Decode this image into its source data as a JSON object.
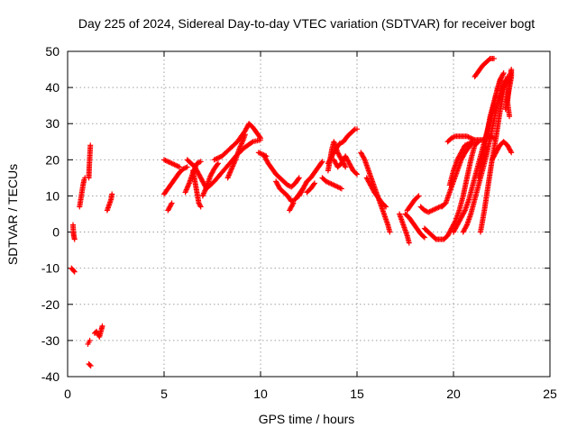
{
  "chart_data": {
    "type": "scatter",
    "title": "Day 225 of 2024, Sidereal Day-to-day VTEC variation (SDTVAR) for receiver bogt",
    "xlabel": "GPS time / hours",
    "ylabel": "SDTVAR / TECUs",
    "xlim": [
      0,
      25
    ],
    "ylim": [
      -40,
      50
    ],
    "xticks": [
      0,
      5,
      10,
      15,
      20,
      25
    ],
    "yticks": [
      -40,
      -30,
      -20,
      -10,
      0,
      10,
      20,
      30,
      40,
      50
    ],
    "grid": true,
    "marker": "plus",
    "point_color": "#ff0000",
    "segments": [
      [
        [
          0.2,
          -10.0
        ],
        [
          0.28,
          -10.5
        ],
        [
          0.36,
          -11.0
        ]
      ],
      [
        [
          0.28,
          2.0
        ],
        [
          0.3,
          0.0
        ],
        [
          0.32,
          -1.0
        ],
        [
          0.36,
          -2.0
        ]
      ],
      [
        [
          0.62,
          7.0
        ],
        [
          0.68,
          9.0
        ],
        [
          0.74,
          11.0
        ],
        [
          0.8,
          13.0
        ],
        [
          0.86,
          14.5
        ],
        [
          0.9,
          15.0
        ]
      ],
      [
        [
          1.1,
          15.0
        ],
        [
          1.12,
          18.0
        ],
        [
          1.14,
          20.0
        ],
        [
          1.16,
          22.0
        ],
        [
          1.18,
          24.0
        ]
      ],
      [
        [
          1.05,
          -31.0
        ],
        [
          1.1,
          -30.5
        ],
        [
          1.15,
          -30.0
        ]
      ],
      [
        [
          1.1,
          -36.5
        ],
        [
          1.2,
          -37.0
        ]
      ],
      [
        [
          1.4,
          -28.0
        ],
        [
          1.5,
          -27.5
        ],
        [
          1.65,
          -29.0
        ],
        [
          1.75,
          -27.0
        ],
        [
          1.8,
          -26.0
        ]
      ],
      [
        [
          2.05,
          6.0
        ],
        [
          2.15,
          7.5
        ],
        [
          2.25,
          9.0
        ],
        [
          2.3,
          10.5
        ]
      ],
      [
        [
          5.0,
          20.0
        ],
        [
          5.2,
          19.5
        ],
        [
          5.4,
          19.0
        ],
        [
          5.6,
          18.5
        ],
        [
          5.8,
          18.0
        ]
      ],
      [
        [
          5.0,
          10.5
        ],
        [
          5.2,
          12.0
        ],
        [
          5.4,
          13.5
        ],
        [
          5.6,
          15.0
        ],
        [
          5.8,
          16.5
        ],
        [
          6.0,
          17.5
        ],
        [
          6.2,
          18.0
        ]
      ],
      [
        [
          5.2,
          6.0
        ],
        [
          5.3,
          7.0
        ],
        [
          5.4,
          8.0
        ]
      ],
      [
        [
          6.1,
          11.0
        ],
        [
          6.3,
          13.5
        ],
        [
          6.5,
          16.5
        ],
        [
          6.7,
          19.0
        ],
        [
          6.9,
          19.5
        ]
      ],
      [
        [
          6.2,
          20.0
        ],
        [
          6.4,
          19.0
        ],
        [
          6.6,
          18.0
        ],
        [
          6.8,
          16.0
        ],
        [
          7.0,
          14.0
        ],
        [
          7.2,
          12.0
        ]
      ],
      [
        [
          6.5,
          17.0
        ],
        [
          6.6,
          14.0
        ],
        [
          6.7,
          11.0
        ],
        [
          6.8,
          8.0
        ],
        [
          6.9,
          7.0
        ]
      ],
      [
        [
          7.0,
          10.0
        ],
        [
          7.2,
          12.5
        ],
        [
          7.4,
          15.5
        ],
        [
          7.6,
          17.5
        ],
        [
          7.8,
          19.0
        ]
      ],
      [
        [
          7.2,
          12.0
        ],
        [
          7.6,
          14.0
        ],
        [
          8.0,
          16.5
        ],
        [
          8.4,
          19.0
        ],
        [
          8.8,
          21.5
        ],
        [
          9.2,
          23.5
        ],
        [
          9.6,
          25.0
        ],
        [
          10.0,
          25.5
        ]
      ],
      [
        [
          7.6,
          20.0
        ],
        [
          8.0,
          21.0
        ],
        [
          8.4,
          23.0
        ],
        [
          8.8,
          25.0
        ],
        [
          9.2,
          28.0
        ],
        [
          9.4,
          30.0
        ],
        [
          9.6,
          29.0
        ],
        [
          9.8,
          27.5
        ],
        [
          10.0,
          26.0
        ]
      ],
      [
        [
          8.3,
          15.0
        ],
        [
          8.5,
          17.5
        ],
        [
          8.7,
          20.0
        ],
        [
          8.9,
          23.0
        ],
        [
          9.1,
          25.5
        ],
        [
          9.2,
          27.0
        ]
      ],
      [
        [
          9.9,
          22.0
        ],
        [
          10.1,
          21.5
        ],
        [
          10.3,
          21.0
        ]
      ],
      [
        [
          10.2,
          21.0
        ],
        [
          10.4,
          19.0
        ],
        [
          10.6,
          17.5
        ],
        [
          10.8,
          16.0
        ],
        [
          11.0,
          15.0
        ],
        [
          11.2,
          14.0
        ],
        [
          11.4,
          13.0
        ],
        [
          11.6,
          12.5
        ],
        [
          11.8,
          13.5
        ],
        [
          12.0,
          15.0
        ]
      ],
      [
        [
          10.8,
          14.0
        ],
        [
          11.0,
          12.0
        ],
        [
          11.2,
          11.0
        ],
        [
          11.4,
          10.0
        ],
        [
          11.6,
          8.5
        ],
        [
          11.8,
          9.0
        ],
        [
          12.0,
          10.5
        ],
        [
          12.2,
          12.0
        ]
      ],
      [
        [
          11.5,
          6.0
        ],
        [
          11.6,
          7.0
        ],
        [
          11.7,
          8.0
        ]
      ],
      [
        [
          12.0,
          10.0
        ],
        [
          12.2,
          12.0
        ],
        [
          12.4,
          14.0
        ],
        [
          12.6,
          15.0
        ],
        [
          12.8,
          16.5
        ],
        [
          13.0,
          18.0
        ],
        [
          13.2,
          19.5
        ]
      ],
      [
        [
          12.4,
          11.0
        ],
        [
          12.6,
          12.0
        ],
        [
          12.8,
          13.5
        ]
      ],
      [
        [
          13.5,
          19.0
        ],
        [
          13.7,
          21.0
        ],
        [
          13.9,
          23.0
        ],
        [
          14.1,
          24.5
        ],
        [
          14.3,
          25.0
        ],
        [
          14.5,
          26.5
        ],
        [
          14.7,
          27.5
        ],
        [
          14.9,
          28.5
        ],
        [
          15.0,
          28.5
        ]
      ],
      [
        [
          13.5,
          17.0
        ],
        [
          13.6,
          20.0
        ],
        [
          13.7,
          23.0
        ],
        [
          13.8,
          25.0
        ],
        [
          14.0,
          22.0
        ],
        [
          14.2,
          20.0
        ],
        [
          14.4,
          18.0
        ]
      ],
      [
        [
          13.8,
          20.0
        ],
        [
          14.0,
          18.0
        ],
        [
          14.2,
          19.0
        ],
        [
          14.4,
          21.0
        ],
        [
          14.6,
          19.0
        ],
        [
          14.8,
          17.0
        ],
        [
          15.0,
          16.0
        ]
      ],
      [
        [
          13.2,
          15.0
        ],
        [
          13.4,
          14.0
        ],
        [
          13.6,
          13.5
        ],
        [
          13.8,
          13.0
        ],
        [
          14.0,
          12.5
        ],
        [
          14.2,
          12.0
        ]
      ],
      [
        [
          15.2,
          22.0
        ],
        [
          15.4,
          20.0
        ],
        [
          15.6,
          17.0
        ],
        [
          15.8,
          14.0
        ],
        [
          16.0,
          11.0
        ],
        [
          16.2,
          8.0
        ],
        [
          16.4,
          5.0
        ],
        [
          16.6,
          2.0
        ],
        [
          16.7,
          0.0
        ]
      ],
      [
        [
          15.5,
          15.0
        ],
        [
          15.7,
          13.0
        ],
        [
          15.9,
          11.0
        ],
        [
          16.1,
          9.5
        ],
        [
          16.3,
          8.0
        ],
        [
          16.5,
          7.0
        ]
      ],
      [
        [
          17.2,
          5.0
        ],
        [
          17.4,
          2.0
        ],
        [
          17.6,
          -1.0
        ],
        [
          17.7,
          -3.0
        ]
      ],
      [
        [
          17.5,
          5.0
        ],
        [
          17.7,
          4.0
        ],
        [
          17.9,
          2.5
        ],
        [
          18.1,
          1.0
        ],
        [
          18.3,
          -0.5
        ],
        [
          18.5,
          -1.5
        ]
      ],
      [
        [
          17.6,
          6.0
        ],
        [
          17.8,
          7.5
        ],
        [
          18.0,
          9.0
        ],
        [
          18.2,
          10.0
        ]
      ],
      [
        [
          18.3,
          7.0
        ],
        [
          18.5,
          6.0
        ],
        [
          18.7,
          5.5
        ],
        [
          18.9,
          6.0
        ],
        [
          19.1,
          6.5
        ],
        [
          19.3,
          7.0
        ],
        [
          19.5,
          7.5
        ]
      ],
      [
        [
          18.5,
          1.0
        ],
        [
          18.7,
          0.0
        ],
        [
          18.9,
          -1.0
        ],
        [
          19.1,
          -2.0
        ],
        [
          19.3,
          -2.0
        ],
        [
          19.5,
          -2.0
        ],
        [
          19.7,
          -1.0
        ],
        [
          19.9,
          1.0
        ],
        [
          20.1,
          3.0
        ],
        [
          20.3,
          6.0
        ],
        [
          20.5,
          10.0
        ],
        [
          20.7,
          15.0
        ],
        [
          20.9,
          20.0
        ],
        [
          21.1,
          24.0
        ],
        [
          21.3,
          25.0
        ]
      ],
      [
        [
          19.4,
          7.0
        ],
        [
          19.6,
          8.0
        ],
        [
          19.8,
          11.0
        ],
        [
          20.0,
          14.0
        ],
        [
          20.2,
          17.0
        ],
        [
          20.4,
          20.0
        ],
        [
          20.6,
          22.0
        ],
        [
          20.8,
          23.5
        ],
        [
          21.0,
          25.0
        ]
      ],
      [
        [
          19.8,
          13.0
        ],
        [
          20.0,
          17.0
        ],
        [
          20.2,
          20.0
        ],
        [
          20.4,
          22.0
        ],
        [
          20.6,
          24.0
        ],
        [
          20.8,
          24.5
        ],
        [
          21.0,
          25.0
        ]
      ],
      [
        [
          20.0,
          0.0
        ],
        [
          20.2,
          2.0
        ],
        [
          20.4,
          4.0
        ],
        [
          20.6,
          6.0
        ],
        [
          20.8,
          9.0
        ],
        [
          21.0,
          13.0
        ],
        [
          21.2,
          17.0
        ],
        [
          21.4,
          21.0
        ],
        [
          21.6,
          25.0
        ],
        [
          21.8,
          29.0
        ],
        [
          22.0,
          33.0
        ],
        [
          22.2,
          38.0
        ],
        [
          22.4,
          42.0
        ],
        [
          22.6,
          44.0
        ]
      ],
      [
        [
          20.5,
          0.0
        ],
        [
          20.7,
          2.0
        ],
        [
          20.9,
          5.0
        ],
        [
          21.1,
          9.0
        ],
        [
          21.3,
          13.0
        ],
        [
          21.5,
          17.0
        ],
        [
          21.7,
          21.0
        ],
        [
          21.9,
          26.0
        ],
        [
          22.1,
          31.0
        ],
        [
          22.3,
          36.0
        ],
        [
          22.5,
          40.0
        ],
        [
          22.7,
          42.0
        ]
      ],
      [
        [
          19.7,
          25.0
        ],
        [
          19.9,
          26.0
        ],
        [
          20.1,
          26.5
        ],
        [
          20.3,
          26.5
        ],
        [
          20.5,
          26.5
        ],
        [
          20.7,
          26.5
        ],
        [
          20.9,
          26.0
        ],
        [
          21.1,
          25.5
        ],
        [
          21.3,
          25.5
        ],
        [
          21.5,
          25.5
        ],
        [
          21.7,
          26.0
        ],
        [
          21.9,
          26.5
        ],
        [
          22.1,
          26.0
        ]
      ],
      [
        [
          21.3,
          15.0
        ],
        [
          21.5,
          20.0
        ],
        [
          21.7,
          26.0
        ],
        [
          21.9,
          32.0
        ],
        [
          22.1,
          36.0
        ],
        [
          22.3,
          40.0
        ],
        [
          22.5,
          43.0
        ]
      ],
      [
        [
          21.4,
          0.0
        ],
        [
          21.6,
          6.0
        ],
        [
          21.8,
          13.0
        ],
        [
          22.0,
          20.0
        ],
        [
          22.2,
          26.0
        ],
        [
          22.4,
          33.0
        ],
        [
          22.6,
          39.0
        ],
        [
          22.8,
          43.0
        ]
      ],
      [
        [
          21.1,
          43.0
        ],
        [
          21.3,
          44.5
        ],
        [
          21.5,
          46.0
        ],
        [
          21.7,
          47.0
        ],
        [
          21.9,
          48.0
        ],
        [
          22.1,
          48.0
        ]
      ],
      [
        [
          22.0,
          20.0
        ],
        [
          22.2,
          22.0
        ],
        [
          22.4,
          24.0
        ],
        [
          22.6,
          25.0
        ],
        [
          22.8,
          24.0
        ],
        [
          23.0,
          22.0
        ]
      ],
      [
        [
          22.7,
          34.0
        ],
        [
          22.8,
          37.0
        ],
        [
          22.9,
          40.0
        ],
        [
          23.0,
          43.0
        ],
        [
          23.0,
          45.0
        ],
        [
          22.9,
          42.0
        ],
        [
          22.8,
          36.0
        ],
        [
          22.9,
          32.0
        ]
      ]
    ]
  }
}
